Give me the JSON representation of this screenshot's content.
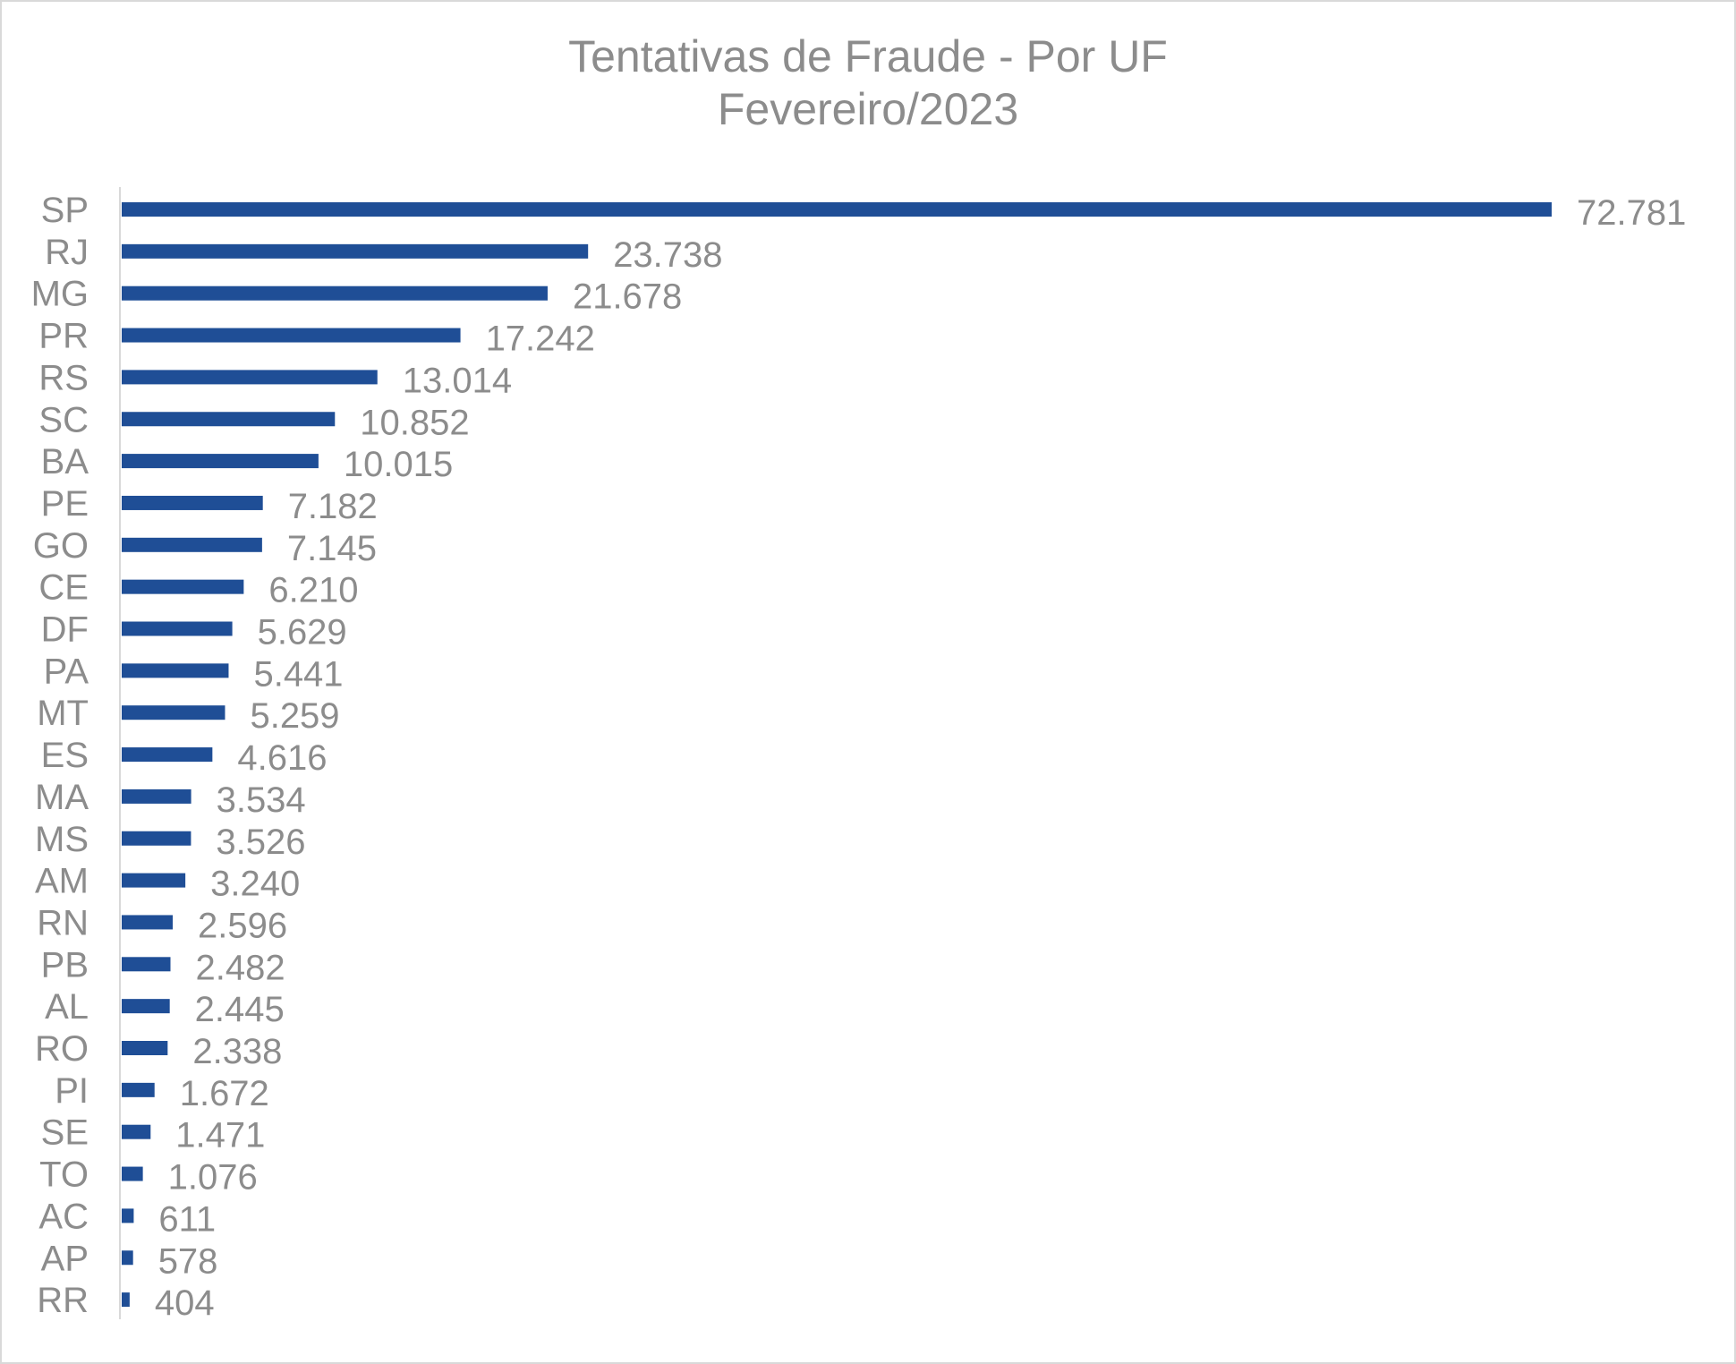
{
  "chart_data": {
    "type": "bar",
    "orientation": "horizontal",
    "title": "Tentativas de Fraude - Por UF",
    "subtitle": "Fevereiro/2023",
    "xlabel": "",
    "ylabel": "",
    "grid": false,
    "legend": "none",
    "xlim": [
      0,
      72781
    ],
    "categories": [
      "SP",
      "RJ",
      "MG",
      "PR",
      "RS",
      "SC",
      "BA",
      "PE",
      "GO",
      "CE",
      "DF",
      "PA",
      "MT",
      "ES",
      "MA",
      "MS",
      "AM",
      "RN",
      "PB",
      "AL",
      "RO",
      "PI",
      "SE",
      "TO",
      "AC",
      "AP",
      "RR"
    ],
    "values": [
      72781,
      23738,
      21678,
      17242,
      13014,
      10852,
      10015,
      7182,
      7145,
      6210,
      5629,
      5441,
      5259,
      4616,
      3534,
      3526,
      3240,
      2596,
      2482,
      2445,
      2338,
      1672,
      1471,
      1076,
      611,
      578,
      404
    ],
    "value_labels": [
      "72.781",
      "23.738",
      "21.678",
      "17.242",
      "13.014",
      "10.852",
      "10.015",
      "7.182",
      "7.145",
      "6.210",
      "5.629",
      "5.441",
      "5.259",
      "4.616",
      "3.534",
      "3.526",
      "3.240",
      "2.596",
      "2.482",
      "2.445",
      "2.338",
      "1.672",
      "1.471",
      "1.076",
      "611",
      "578",
      "404"
    ],
    "colors": {
      "bar": "#1f4e96",
      "text": "#8c8c8c",
      "axis": "#d9d9d9"
    }
  }
}
